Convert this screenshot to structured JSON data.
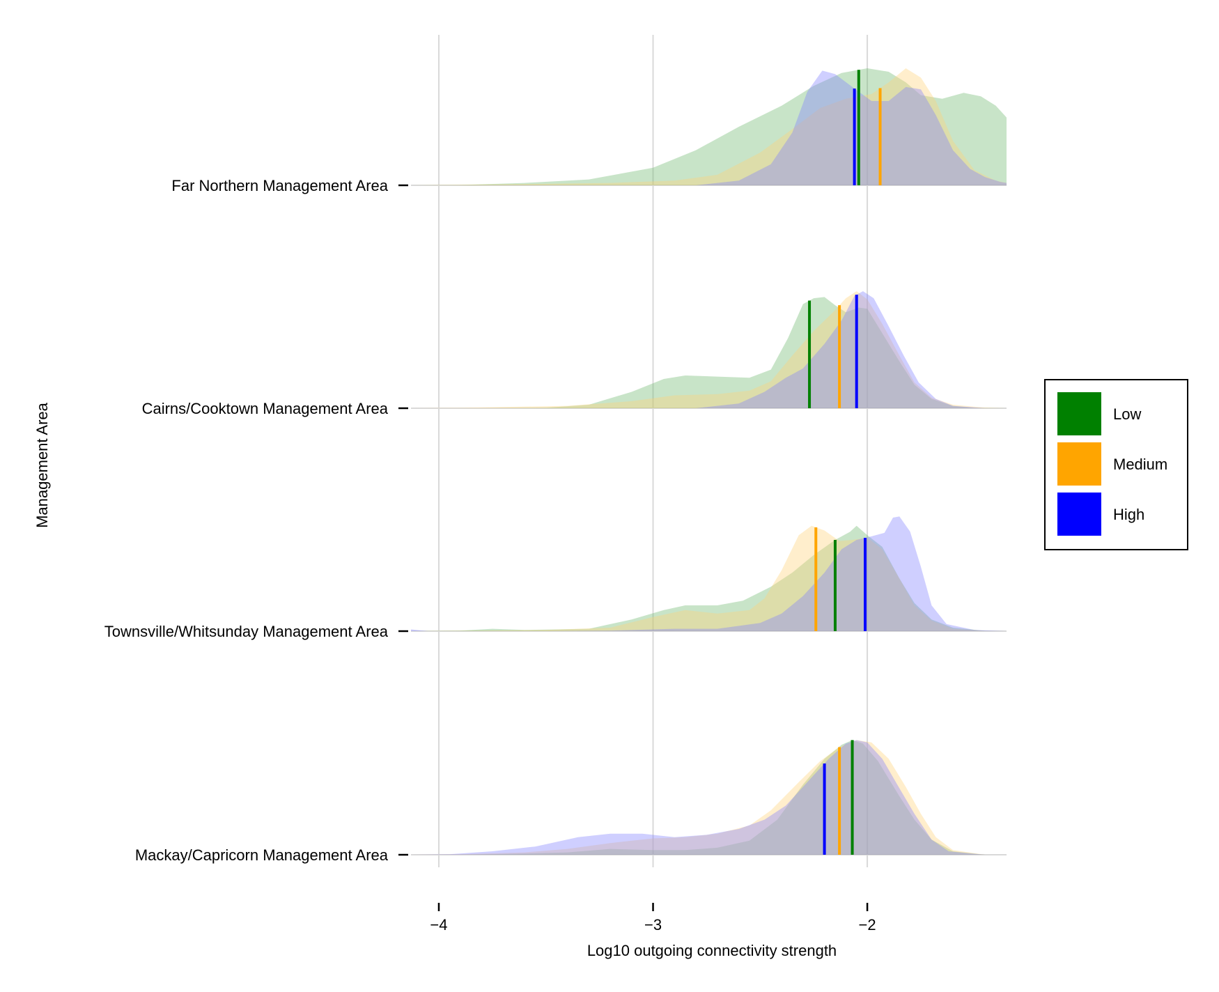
{
  "chart_data": {
    "type": "area",
    "subtype": "ridgeline-density",
    "xlabel": "Log10 outgoing connectivity strength",
    "ylabel": "Management Area",
    "xlim": [
      -4.13,
      -1.35
    ],
    "x_ticks": [
      -4,
      -3,
      -2
    ],
    "x_tick_labels": [
      "−4",
      "−3",
      "−2"
    ],
    "grid": "vertical",
    "legend": {
      "position": "right",
      "entries": [
        {
          "label": "Low",
          "color": "#008000"
        },
        {
          "label": "Medium",
          "color": "#FFA500"
        },
        {
          "label": "High",
          "color": "#0000FF"
        }
      ]
    },
    "categories": [
      "Far Northern Management Area",
      "Cairns/Cooktown Management Area",
      "Townsville/Whitsunday Management Area",
      "Mackay/Capricorn Management Area"
    ],
    "series_names": [
      "Low",
      "Medium",
      "High"
    ],
    "rows": [
      {
        "category": "Far Northern Management Area",
        "medians": {
          "Low": -2.04,
          "Medium": -1.94,
          "High": -2.06
        },
        "densities": {
          "Low": [
            [
              -4.13,
              0
            ],
            [
              -3.9,
              0.003
            ],
            [
              -3.6,
              0.02
            ],
            [
              -3.3,
              0.05
            ],
            [
              -3.0,
              0.15
            ],
            [
              -2.8,
              0.3
            ],
            [
              -2.6,
              0.5
            ],
            [
              -2.4,
              0.68
            ],
            [
              -2.25,
              0.85
            ],
            [
              -2.12,
              0.96
            ],
            [
              -2.0,
              1.0
            ],
            [
              -1.9,
              0.97
            ],
            [
              -1.82,
              0.88
            ],
            [
              -1.75,
              0.77
            ],
            [
              -1.65,
              0.74
            ],
            [
              -1.55,
              0.79
            ],
            [
              -1.47,
              0.76
            ],
            [
              -1.4,
              0.68
            ],
            [
              -1.35,
              0.58
            ]
          ],
          "Medium": [
            [
              -4.13,
              0
            ],
            [
              -3.6,
              0.01
            ],
            [
              -3.2,
              0.02
            ],
            [
              -2.9,
              0.04
            ],
            [
              -2.7,
              0.09
            ],
            [
              -2.5,
              0.28
            ],
            [
              -2.35,
              0.48
            ],
            [
              -2.22,
              0.66
            ],
            [
              -2.1,
              0.74
            ],
            [
              -1.98,
              0.78
            ],
            [
              -1.9,
              0.88
            ],
            [
              -1.82,
              1.0
            ],
            [
              -1.75,
              0.92
            ],
            [
              -1.68,
              0.72
            ],
            [
              -1.6,
              0.38
            ],
            [
              -1.5,
              0.13
            ],
            [
              -1.4,
              0.04
            ],
            [
              -1.35,
              0.02
            ]
          ],
          "High": [
            [
              -4.13,
              0
            ],
            [
              -2.8,
              0
            ],
            [
              -2.6,
              0.04
            ],
            [
              -2.45,
              0.18
            ],
            [
              -2.35,
              0.45
            ],
            [
              -2.28,
              0.8
            ],
            [
              -2.21,
              0.98
            ],
            [
              -2.15,
              0.95
            ],
            [
              -2.07,
              0.84
            ],
            [
              -1.98,
              0.72
            ],
            [
              -1.9,
              0.72
            ],
            [
              -1.82,
              0.84
            ],
            [
              -1.75,
              0.82
            ],
            [
              -1.68,
              0.6
            ],
            [
              -1.6,
              0.3
            ],
            [
              -1.52,
              0.14
            ],
            [
              -1.45,
              0.07
            ],
            [
              -1.38,
              0.03
            ],
            [
              -1.35,
              0.02
            ]
          ]
        }
      },
      {
        "category": "Cairns/Cooktown Management Area",
        "medians": {
          "Low": -2.27,
          "Medium": -2.13,
          "High": -2.05
        },
        "densities": {
          "Low": [
            [
              -4.13,
              0
            ],
            [
              -3.8,
              0
            ],
            [
              -3.5,
              0.004
            ],
            [
              -3.3,
              0.03
            ],
            [
              -3.1,
              0.14
            ],
            [
              -2.95,
              0.25
            ],
            [
              -2.85,
              0.28
            ],
            [
              -2.7,
              0.27
            ],
            [
              -2.55,
              0.26
            ],
            [
              -2.45,
              0.33
            ],
            [
              -2.37,
              0.6
            ],
            [
              -2.3,
              0.89
            ],
            [
              -2.25,
              0.94
            ],
            [
              -2.2,
              0.95
            ],
            [
              -2.15,
              0.88
            ],
            [
              -2.1,
              0.82
            ],
            [
              -2.04,
              0.86
            ],
            [
              -2.0,
              0.85
            ],
            [
              -1.95,
              0.7
            ],
            [
              -1.85,
              0.4
            ],
            [
              -1.78,
              0.2
            ],
            [
              -1.7,
              0.08
            ],
            [
              -1.6,
              0.02
            ],
            [
              -1.5,
              0.003
            ],
            [
              -1.35,
              0
            ]
          ],
          "Medium": [
            [
              -4.13,
              0
            ],
            [
              -3.9,
              0.003
            ],
            [
              -3.7,
              0.01
            ],
            [
              -3.4,
              0.02
            ],
            [
              -3.1,
              0.06
            ],
            [
              -2.9,
              0.11
            ],
            [
              -2.7,
              0.12
            ],
            [
              -2.55,
              0.15
            ],
            [
              -2.45,
              0.23
            ],
            [
              -2.35,
              0.45
            ],
            [
              -2.25,
              0.66
            ],
            [
              -2.16,
              0.82
            ],
            [
              -2.1,
              0.94
            ],
            [
              -2.05,
              1.0
            ],
            [
              -2.0,
              0.93
            ],
            [
              -1.93,
              0.72
            ],
            [
              -1.85,
              0.45
            ],
            [
              -1.78,
              0.22
            ],
            [
              -1.7,
              0.09
            ],
            [
              -1.6,
              0.03
            ],
            [
              -1.45,
              0.005
            ],
            [
              -1.35,
              0
            ]
          ],
          "High": [
            [
              -4.13,
              0
            ],
            [
              -2.8,
              0
            ],
            [
              -2.6,
              0.04
            ],
            [
              -2.48,
              0.14
            ],
            [
              -2.38,
              0.26
            ],
            [
              -2.3,
              0.34
            ],
            [
              -2.2,
              0.55
            ],
            [
              -2.12,
              0.75
            ],
            [
              -2.06,
              0.96
            ],
            [
              -2.02,
              1.0
            ],
            [
              -1.97,
              0.94
            ],
            [
              -1.9,
              0.7
            ],
            [
              -1.83,
              0.45
            ],
            [
              -1.76,
              0.22
            ],
            [
              -1.68,
              0.08
            ],
            [
              -1.6,
              0.02
            ],
            [
              -1.45,
              0
            ],
            [
              -1.35,
              0
            ]
          ]
        }
      },
      {
        "category": "Townsville/Whitsunday Management Area",
        "medians": {
          "Low": -2.15,
          "Medium": -2.24,
          "High": -2.01
        },
        "densities": {
          "Low": [
            [
              -4.13,
              0
            ],
            [
              -3.9,
              0.005
            ],
            [
              -3.75,
              0.02
            ],
            [
              -3.6,
              0.01
            ],
            [
              -3.3,
              0.02
            ],
            [
              -3.1,
              0.1
            ],
            [
              -2.95,
              0.18
            ],
            [
              -2.85,
              0.22
            ],
            [
              -2.7,
              0.22
            ],
            [
              -2.58,
              0.26
            ],
            [
              -2.45,
              0.38
            ],
            [
              -2.35,
              0.5
            ],
            [
              -2.25,
              0.65
            ],
            [
              -2.15,
              0.78
            ],
            [
              -2.08,
              0.85
            ],
            [
              -2.05,
              0.9
            ],
            [
              -2.0,
              0.82
            ],
            [
              -1.93,
              0.72
            ],
            [
              -1.85,
              0.45
            ],
            [
              -1.78,
              0.24
            ],
            [
              -1.7,
              0.1
            ],
            [
              -1.6,
              0.03
            ],
            [
              -1.45,
              0.003
            ],
            [
              -1.35,
              0
            ]
          ],
          "Medium": [
            [
              -4.13,
              0
            ],
            [
              -3.8,
              0.005
            ],
            [
              -3.5,
              0.01
            ],
            [
              -3.2,
              0.03
            ],
            [
              -3.0,
              0.12
            ],
            [
              -2.85,
              0.18
            ],
            [
              -2.7,
              0.15
            ],
            [
              -2.55,
              0.18
            ],
            [
              -2.48,
              0.28
            ],
            [
              -2.4,
              0.52
            ],
            [
              -2.32,
              0.82
            ],
            [
              -2.26,
              0.9
            ],
            [
              -2.2,
              0.86
            ],
            [
              -2.13,
              0.77
            ],
            [
              -2.07,
              0.78
            ],
            [
              -2.0,
              0.8
            ],
            [
              -1.93,
              0.7
            ],
            [
              -1.85,
              0.45
            ],
            [
              -1.78,
              0.22
            ],
            [
              -1.7,
              0.09
            ],
            [
              -1.6,
              0.02
            ],
            [
              -1.45,
              0.003
            ],
            [
              -1.35,
              0
            ]
          ],
          "High": [
            [
              -4.13,
              0.015
            ],
            [
              -4.05,
              0
            ],
            [
              -3.5,
              0
            ],
            [
              -3.2,
              0.005
            ],
            [
              -2.9,
              0.02
            ],
            [
              -2.7,
              0.02
            ],
            [
              -2.5,
              0.07
            ],
            [
              -2.4,
              0.15
            ],
            [
              -2.3,
              0.3
            ],
            [
              -2.2,
              0.5
            ],
            [
              -2.12,
              0.7
            ],
            [
              -2.05,
              0.78
            ],
            [
              -1.98,
              0.81
            ],
            [
              -1.92,
              0.84
            ],
            [
              -1.88,
              0.97
            ],
            [
              -1.85,
              0.98
            ],
            [
              -1.8,
              0.85
            ],
            [
              -1.75,
              0.55
            ],
            [
              -1.7,
              0.22
            ],
            [
              -1.63,
              0.06
            ],
            [
              -1.5,
              0.01
            ],
            [
              -1.35,
              0
            ]
          ]
        }
      },
      {
        "category": "Mackay/Capricorn Management Area",
        "medians": {
          "Low": -2.07,
          "Medium": -2.13,
          "High": -2.2
        },
        "densities": {
          "Low": [
            [
              -4.13,
              0
            ],
            [
              -3.9,
              0
            ],
            [
              -3.6,
              0.01
            ],
            [
              -3.4,
              0.02
            ],
            [
              -3.2,
              0.05
            ],
            [
              -3.0,
              0.04
            ],
            [
              -2.85,
              0.04
            ],
            [
              -2.7,
              0.06
            ],
            [
              -2.55,
              0.12
            ],
            [
              -2.42,
              0.3
            ],
            [
              -2.3,
              0.6
            ],
            [
              -2.2,
              0.82
            ],
            [
              -2.12,
              0.94
            ],
            [
              -2.07,
              0.98
            ],
            [
              -2.02,
              0.95
            ],
            [
              -1.95,
              0.8
            ],
            [
              -1.85,
              0.5
            ],
            [
              -1.78,
              0.3
            ],
            [
              -1.7,
              0.13
            ],
            [
              -1.6,
              0.03
            ],
            [
              -1.45,
              0
            ],
            [
              -1.35,
              0
            ]
          ],
          "Medium": [
            [
              -4.13,
              0
            ],
            [
              -3.9,
              0.005
            ],
            [
              -3.6,
              0.02
            ],
            [
              -3.4,
              0.05
            ],
            [
              -3.2,
              0.1
            ],
            [
              -3.0,
              0.14
            ],
            [
              -2.85,
              0.15
            ],
            [
              -2.7,
              0.18
            ],
            [
              -2.55,
              0.25
            ],
            [
              -2.45,
              0.38
            ],
            [
              -2.32,
              0.62
            ],
            [
              -2.22,
              0.8
            ],
            [
              -2.13,
              0.92
            ],
            [
              -2.05,
              0.98
            ],
            [
              -1.98,
              0.96
            ],
            [
              -1.9,
              0.82
            ],
            [
              -1.82,
              0.58
            ],
            [
              -1.75,
              0.35
            ],
            [
              -1.68,
              0.15
            ],
            [
              -1.6,
              0.04
            ],
            [
              -1.45,
              0
            ],
            [
              -1.35,
              0
            ]
          ],
          "High": [
            [
              -4.13,
              0
            ],
            [
              -3.95,
              0.005
            ],
            [
              -3.75,
              0.03
            ],
            [
              -3.55,
              0.07
            ],
            [
              -3.35,
              0.15
            ],
            [
              -3.2,
              0.18
            ],
            [
              -3.05,
              0.18
            ],
            [
              -2.9,
              0.15
            ],
            [
              -2.75,
              0.17
            ],
            [
              -2.6,
              0.22
            ],
            [
              -2.48,
              0.3
            ],
            [
              -2.38,
              0.42
            ],
            [
              -2.28,
              0.62
            ],
            [
              -2.18,
              0.82
            ],
            [
              -2.1,
              0.95
            ],
            [
              -2.05,
              0.98
            ],
            [
              -2.0,
              0.96
            ],
            [
              -1.93,
              0.82
            ],
            [
              -1.86,
              0.6
            ],
            [
              -1.78,
              0.35
            ],
            [
              -1.7,
              0.13
            ],
            [
              -1.62,
              0.03
            ],
            [
              -1.45,
              0
            ],
            [
              -1.35,
              0
            ]
          ]
        }
      }
    ]
  }
}
